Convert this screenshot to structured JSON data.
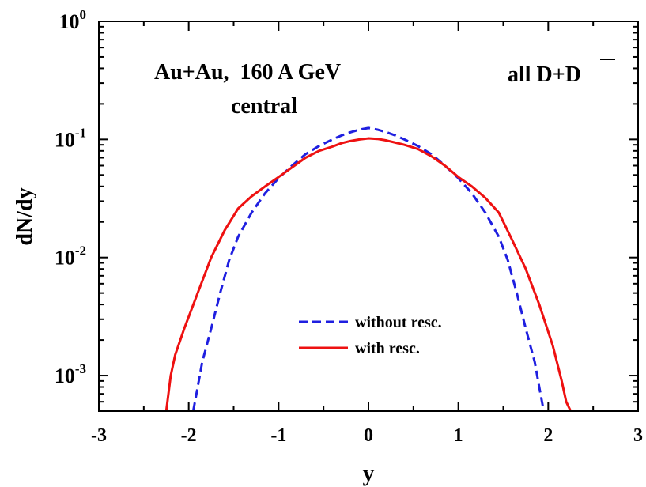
{
  "chart_data": {
    "type": "line",
    "title": "",
    "xlabel": "y",
    "ylabel": "dN/dy",
    "xlim": [
      -3,
      3
    ],
    "ylim": [
      0.0005,
      1
    ],
    "yscale": "log",
    "x_ticks": [
      "-3",
      "-2",
      "-1",
      "0",
      "1",
      "2",
      "3"
    ],
    "y_ticks": [
      {
        "base": "10",
        "exp": "0",
        "value": 1
      },
      {
        "base": "10",
        "exp": "-1",
        "value": 0.1
      },
      {
        "base": "10",
        "exp": "-2",
        "value": 0.01
      },
      {
        "base": "10",
        "exp": "-3",
        "value": 0.001
      }
    ],
    "annotations": [
      {
        "text": "Au+Au,  160 A GeV"
      },
      {
        "text": "central"
      },
      {
        "text": "all D+D"
      }
    ],
    "legend_position": "bottom-center",
    "series": [
      {
        "name": "without resc.",
        "color": "#1f1fe0",
        "style": "dashed",
        "x": [
          -1.95,
          -1.9,
          -1.85,
          -1.75,
          -1.65,
          -1.55,
          -1.45,
          -1.3,
          -1.15,
          -1.0,
          -0.85,
          -0.7,
          -0.55,
          -0.4,
          -0.3,
          -0.2,
          -0.1,
          0.0,
          0.1,
          0.2,
          0.3,
          0.4,
          0.55,
          0.7,
          0.85,
          1.0,
          1.15,
          1.3,
          1.45,
          1.55,
          1.65,
          1.75,
          1.85,
          1.9,
          1.95
        ],
        "y": [
          0.0005,
          0.0008,
          0.0013,
          0.0025,
          0.005,
          0.0095,
          0.015,
          0.024,
          0.035,
          0.047,
          0.06,
          0.075,
          0.088,
          0.1,
          0.108,
          0.115,
          0.121,
          0.125,
          0.121,
          0.115,
          0.108,
          0.1,
          0.088,
          0.075,
          0.06,
          0.047,
          0.035,
          0.024,
          0.015,
          0.0095,
          0.005,
          0.0025,
          0.0013,
          0.0008,
          0.0005
        ]
      },
      {
        "name": "with resc.",
        "color": "#ee1111",
        "style": "solid",
        "x": [
          -2.25,
          -2.2,
          -2.15,
          -2.05,
          -1.9,
          -1.75,
          -1.6,
          -1.45,
          -1.3,
          -1.15,
          -1.0,
          -0.85,
          -0.7,
          -0.55,
          -0.4,
          -0.3,
          -0.2,
          -0.1,
          0.0,
          0.1,
          0.2,
          0.3,
          0.4,
          0.55,
          0.7,
          0.85,
          1.0,
          1.15,
          1.3,
          1.45,
          1.6,
          1.75,
          1.9,
          2.05,
          2.15,
          2.2,
          2.25
        ],
        "y": [
          0.0005,
          0.001,
          0.0015,
          0.0025,
          0.005,
          0.01,
          0.017,
          0.026,
          0.033,
          0.04,
          0.048,
          0.058,
          0.07,
          0.08,
          0.087,
          0.093,
          0.097,
          0.1,
          0.102,
          0.101,
          0.098,
          0.094,
          0.09,
          0.083,
          0.072,
          0.06,
          0.048,
          0.04,
          0.032,
          0.024,
          0.014,
          0.008,
          0.004,
          0.0018,
          0.0009,
          0.0006,
          0.0005
        ]
      }
    ]
  }
}
